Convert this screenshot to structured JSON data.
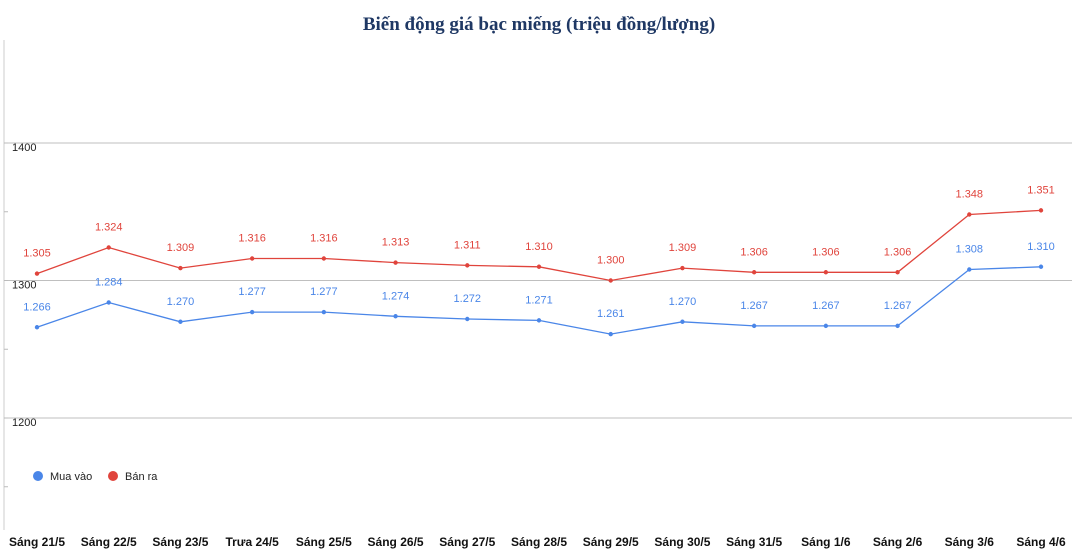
{
  "chart_data": {
    "type": "line",
    "title": "Biến động giá bạc miếng (triệu đồng/lượng)",
    "xlabel": "",
    "ylabel": "",
    "categories": [
      "Sáng 21/5",
      "Sáng 22/5",
      "Sáng 23/5",
      "Trưa 24/5",
      "Sáng 25/5",
      "Sáng 26/5",
      "Sáng 27/5",
      "Sáng 28/5",
      "Sáng 29/5",
      "Sáng 30/5",
      "Sáng 31/5",
      "Sáng 1/6",
      "Sáng 2/6",
      "Sáng 3/6",
      "Sáng 4/6"
    ],
    "series": [
      {
        "name": "Mua vào",
        "color": "#4a86e8",
        "values": [
          1266,
          1284,
          1270,
          1277,
          1277,
          1274,
          1272,
          1271,
          1261,
          1270,
          1267,
          1267,
          1267,
          1308,
          1310
        ],
        "labels": [
          "1.266",
          "1.284",
          "1.270",
          "1.277",
          "1.277",
          "1.274",
          "1.272",
          "1.271",
          "1.261",
          "1.270",
          "1.267",
          "1.267",
          "1.267",
          "1.308",
          "1.310"
        ]
      },
      {
        "name": "Bán ra",
        "color": "#e0443c",
        "values": [
          1305,
          1324,
          1309,
          1316,
          1316,
          1313,
          1311,
          1310,
          1300,
          1309,
          1306,
          1306,
          1306,
          1348,
          1351
        ],
        "labels": [
          "1.305",
          "1.324",
          "1.309",
          "1.316",
          "1.316",
          "1.313",
          "1.311",
          "1.310",
          "1.300",
          "1.309",
          "1.306",
          "1.306",
          "1.306",
          "1.348",
          "1.351"
        ]
      }
    ],
    "yticks": [
      1200,
      1300,
      1400
    ],
    "ytick_labels": [
      "1200",
      "1300",
      "1400"
    ],
    "ylim": [
      1200,
      1400
    ],
    "grid": true,
    "legend_position": "bottom-left"
  }
}
